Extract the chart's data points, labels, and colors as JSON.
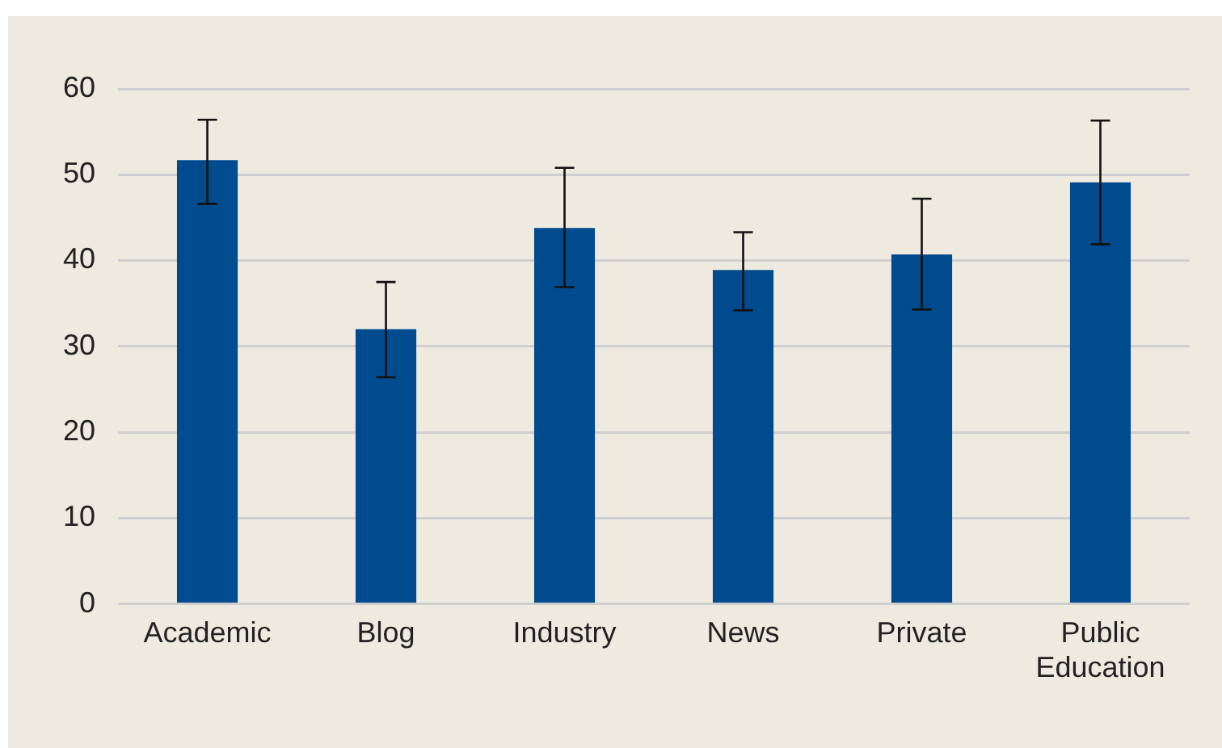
{
  "chart_data": {
    "type": "bar",
    "categories": [
      "Academic",
      "Blog",
      "Industry",
      "News",
      "Private",
      "Public Education"
    ],
    "values": [
      51.7,
      32.0,
      43.8,
      38.9,
      40.7,
      49.1
    ],
    "color": "#004b8d",
    "errors": [
      [
        46.6,
        56.4
      ],
      [
        26.4,
        37.5
      ],
      [
        36.9,
        50.8
      ],
      [
        34.2,
        43.3
      ],
      [
        34.3,
        47.2
      ],
      [
        41.9,
        56.3
      ]
    ],
    "ylim": [
      0,
      60
    ],
    "yticks": [
      0,
      10,
      20,
      30,
      40,
      50,
      60
    ],
    "grid": "y",
    "legend": false
  }
}
